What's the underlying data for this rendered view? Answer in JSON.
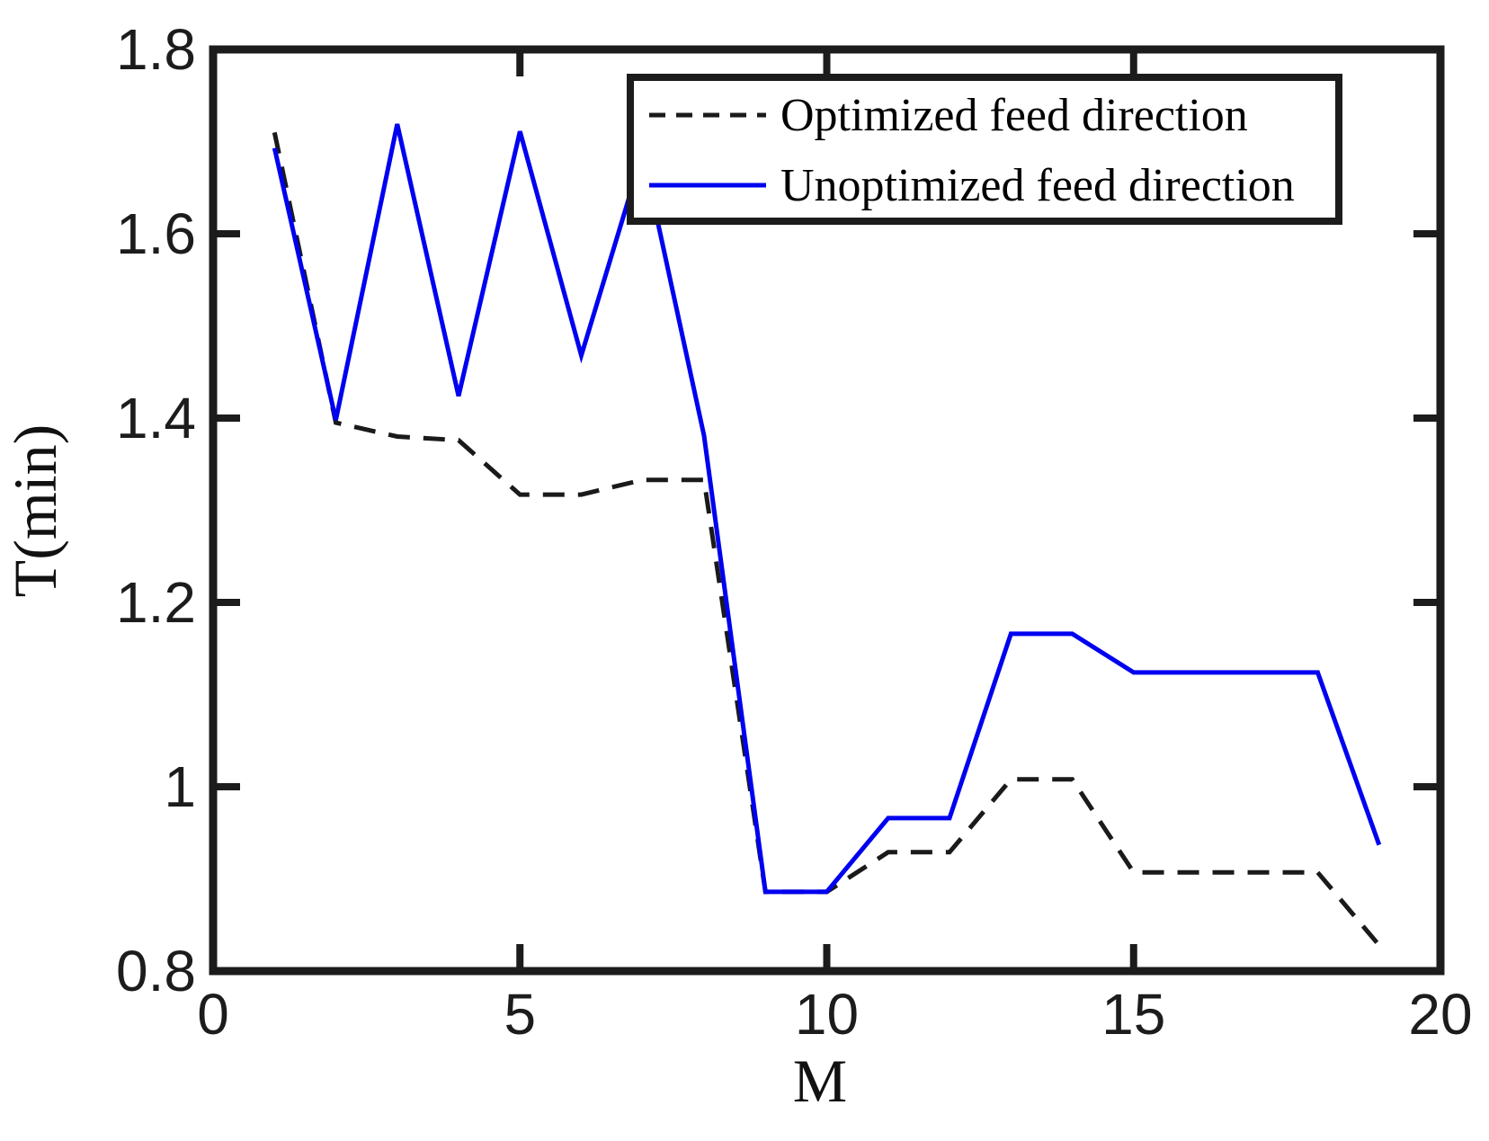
{
  "figure": {
    "background": "#ffffff",
    "axis_color": "#1c1c1c",
    "tick_label_color": "#1c1c1c"
  },
  "chart_data": {
    "type": "line",
    "title": "",
    "xlabel": "M",
    "ylabel": "T(min)",
    "xlim": [
      0,
      20
    ],
    "ylim": [
      0.8,
      1.8
    ],
    "x_ticks": [
      0,
      5,
      10,
      15,
      20
    ],
    "x_tick_labels": [
      "0",
      "5",
      "10",
      "15",
      "20"
    ],
    "y_ticks": [
      0.8,
      1.0,
      1.2,
      1.4,
      1.6,
      1.8
    ],
    "y_tick_labels": [
      "0.8",
      "1",
      "1.2",
      "1.4",
      "1.6",
      "1.8"
    ],
    "grid": false,
    "legend_position": "top-right",
    "x": [
      1,
      2,
      3,
      4,
      5,
      6,
      7,
      8,
      9,
      10,
      11,
      12,
      13,
      14,
      15,
      16,
      17,
      18,
      19
    ],
    "series": [
      {
        "name": "Optimized feed direction",
        "color": "#1a1a1a",
        "style": "dashed",
        "values": [
          1.71,
          1.395,
          1.38,
          1.376,
          1.317,
          1.317,
          1.333,
          1.333,
          0.886,
          0.886,
          0.929,
          0.929,
          1.008,
          1.008,
          0.907,
          0.907,
          0.907,
          0.907,
          0.828
        ]
      },
      {
        "name": "Unoptimized feed direction",
        "color": "#0000f0",
        "style": "solid",
        "values": [
          1.693,
          1.398,
          1.719,
          1.424,
          1.711,
          1.468,
          1.688,
          1.381,
          0.886,
          0.886,
          0.966,
          0.966,
          1.166,
          1.166,
          1.124,
          1.124,
          1.124,
          1.124,
          0.937
        ]
      }
    ]
  }
}
